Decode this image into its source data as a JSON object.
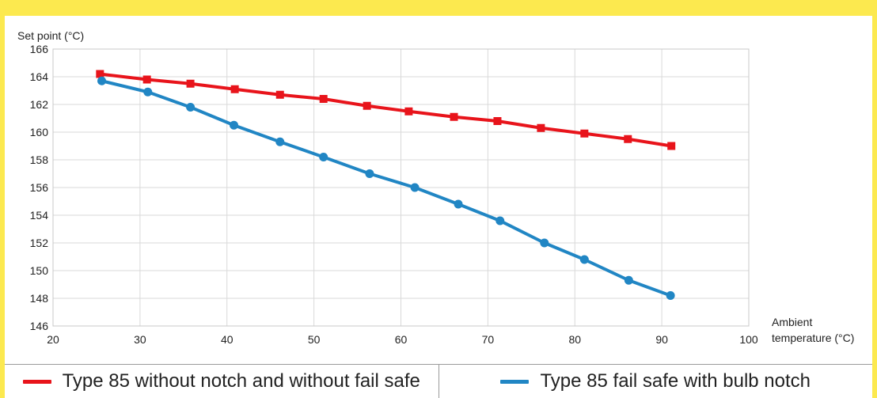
{
  "chart_data": {
    "type": "line",
    "ylabel": "Set point (°C)",
    "xlabel_lines": [
      "Ambient",
      "temperature (°C)"
    ],
    "xlim": [
      20,
      100
    ],
    "ylim": [
      146,
      166
    ],
    "xticks": [
      20,
      30,
      40,
      50,
      60,
      70,
      80,
      90,
      100
    ],
    "yticks": [
      146,
      148,
      150,
      152,
      154,
      156,
      158,
      160,
      162,
      164,
      166
    ],
    "grid": true,
    "legend_position": "bottom",
    "series": [
      {
        "name": "Type 85 without notch and without fail safe",
        "color": "#e8141b",
        "marker": "square",
        "points": [
          [
            25.4,
            164.2
          ],
          [
            30.8,
            163.8
          ],
          [
            35.8,
            163.5
          ],
          [
            40.9,
            163.1
          ],
          [
            46.1,
            162.7
          ],
          [
            51.1,
            162.4
          ],
          [
            56.1,
            161.9
          ],
          [
            60.9,
            161.5
          ],
          [
            66.1,
            161.1
          ],
          [
            71.1,
            160.8
          ],
          [
            76.1,
            160.3
          ],
          [
            81.1,
            159.9
          ],
          [
            86.1,
            159.5
          ],
          [
            91.1,
            159.0
          ]
        ]
      },
      {
        "name": "Type 85 fail safe with bulb notch",
        "color": "#2186c4",
        "marker": "circle",
        "points": [
          [
            25.6,
            163.7
          ],
          [
            30.9,
            162.9
          ],
          [
            35.8,
            161.8
          ],
          [
            40.8,
            160.5
          ],
          [
            46.1,
            159.3
          ],
          [
            51.1,
            158.2
          ],
          [
            56.4,
            157.0
          ],
          [
            61.6,
            156.0
          ],
          [
            66.6,
            154.8
          ],
          [
            71.4,
            153.6
          ],
          [
            76.5,
            152.0
          ],
          [
            81.1,
            150.8
          ],
          [
            86.2,
            149.3
          ],
          [
            91.0,
            148.2
          ]
        ]
      }
    ]
  },
  "legend": {
    "items": [
      {
        "label": "Type 85 without notch and without fail safe",
        "color": "#e8141b"
      },
      {
        "label": "Type 85 fail safe with bulb notch",
        "color": "#2186c4"
      }
    ]
  }
}
